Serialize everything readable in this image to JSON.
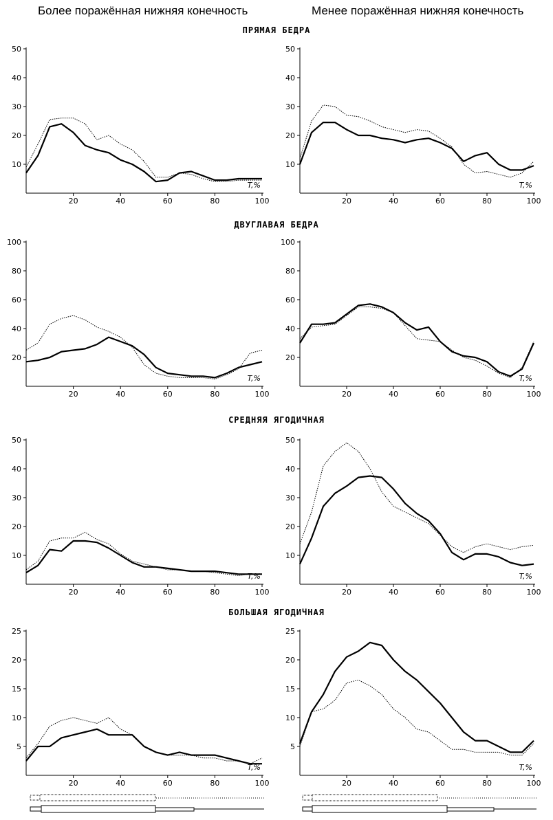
{
  "headers": {
    "left": "Более поражённая нижняя конечность",
    "right": "Менее поражённая нижняя конечность"
  },
  "sections": [
    "ПРЯМАЯ БЕДРА",
    "ДВУГЛАВАЯ БЕДРА",
    "СРЕДНЯЯ ЯГОДИЧНАЯ",
    "БОЛЬШАЯ ЯГОДИЧНАЯ"
  ],
  "xlabel": "T,%",
  "x_ticks": [
    20,
    40,
    60,
    80,
    100
  ],
  "series_styles": {
    "solid": "thick solid line",
    "dotted": "thin dotted line"
  },
  "chart_data": [
    {
      "type": "line",
      "panel": "rectus-femoris-affected",
      "title": "ПРЯМАЯ БЕДРА",
      "xlabel": "T,%",
      "xlim": [
        0,
        100
      ],
      "ylim": [
        0,
        50
      ],
      "yticks": [
        10,
        20,
        30,
        40,
        50
      ],
      "series": [
        {
          "name": "solid",
          "x": [
            0,
            5,
            10,
            15,
            20,
            25,
            30,
            35,
            40,
            45,
            50,
            55,
            60,
            65,
            70,
            75,
            80,
            85,
            90,
            95,
            100
          ],
          "values": [
            7,
            13,
            23,
            24,
            21,
            16.5,
            15,
            14,
            11.5,
            10,
            7.5,
            4,
            4.5,
            7,
            7.5,
            6,
            4.5,
            4.5,
            5,
            5,
            5
          ]
        },
        {
          "name": "dotted",
          "x": [
            0,
            5,
            10,
            15,
            20,
            25,
            30,
            35,
            40,
            45,
            50,
            55,
            60,
            65,
            70,
            75,
            80,
            85,
            90,
            95,
            100
          ],
          "values": [
            9,
            17,
            25.5,
            26,
            26,
            24,
            18.5,
            20,
            17,
            15,
            11,
            5.5,
            5.5,
            7,
            6.5,
            5,
            4,
            4,
            4.5,
            4.5,
            4.5
          ]
        }
      ]
    },
    {
      "type": "line",
      "panel": "rectus-femoris-less-affected",
      "title": "ПРЯМАЯ БЕДРА",
      "xlabel": "T,%",
      "xlim": [
        0,
        100
      ],
      "ylim": [
        0,
        50
      ],
      "yticks": [
        10,
        20,
        30,
        40,
        50
      ],
      "series": [
        {
          "name": "solid",
          "x": [
            0,
            5,
            10,
            15,
            20,
            25,
            30,
            35,
            40,
            45,
            50,
            55,
            60,
            65,
            70,
            75,
            80,
            85,
            90,
            95,
            100
          ],
          "values": [
            10,
            21,
            24.5,
            24.5,
            22,
            20,
            20,
            19,
            18.5,
            17.5,
            18.5,
            19,
            17.5,
            15.5,
            11,
            13,
            14,
            10,
            8,
            8,
            9.5
          ]
        },
        {
          "name": "dotted",
          "x": [
            0,
            5,
            10,
            15,
            20,
            25,
            30,
            35,
            40,
            45,
            50,
            55,
            60,
            65,
            70,
            75,
            80,
            85,
            90,
            95,
            100
          ],
          "values": [
            12,
            25,
            30.5,
            30,
            27,
            26.5,
            25,
            23,
            22,
            21,
            22,
            21.5,
            19,
            16,
            10,
            7,
            7.5,
            6.5,
            5.5,
            7,
            11
          ]
        }
      ]
    },
    {
      "type": "line",
      "panel": "biceps-femoris-affected",
      "title": "ДВУГЛАВАЯ БЕДРА",
      "xlabel": "T,%",
      "xlim": [
        0,
        100
      ],
      "ylim": [
        0,
        100
      ],
      "yticks": [
        20,
        40,
        60,
        80,
        100
      ],
      "series": [
        {
          "name": "solid",
          "x": [
            0,
            5,
            10,
            15,
            20,
            25,
            30,
            35,
            40,
            45,
            50,
            55,
            60,
            65,
            70,
            75,
            80,
            85,
            90,
            95,
            100
          ],
          "values": [
            17,
            18,
            20,
            24,
            25,
            26,
            29,
            34,
            31,
            28,
            22,
            13,
            9,
            8,
            7,
            7,
            6,
            9,
            13,
            15,
            17
          ]
        },
        {
          "name": "dotted",
          "x": [
            0,
            5,
            10,
            15,
            20,
            25,
            30,
            35,
            40,
            45,
            50,
            55,
            60,
            65,
            70,
            75,
            80,
            85,
            90,
            95,
            100
          ],
          "values": [
            25,
            30,
            43,
            47,
            49,
            46,
            41,
            38,
            34,
            27,
            15,
            9,
            7,
            6,
            6,
            6,
            5,
            8,
            12,
            23,
            25
          ]
        }
      ]
    },
    {
      "type": "line",
      "panel": "biceps-femoris-less-affected",
      "title": "ДВУГЛАВАЯ БЕДРА",
      "xlabel": "T,%",
      "xlim": [
        0,
        100
      ],
      "ylim": [
        0,
        100
      ],
      "yticks": [
        20,
        40,
        60,
        80,
        100
      ],
      "series": [
        {
          "name": "solid",
          "x": [
            0,
            5,
            10,
            15,
            20,
            25,
            30,
            35,
            40,
            45,
            50,
            55,
            60,
            65,
            70,
            75,
            80,
            85,
            90,
            95,
            100
          ],
          "values": [
            30,
            43,
            43,
            44,
            50,
            56,
            57,
            55,
            51,
            44,
            39,
            41,
            31,
            24,
            21,
            20,
            17,
            10,
            7,
            12,
            30
          ]
        },
        {
          "name": "dotted",
          "x": [
            0,
            5,
            10,
            15,
            20,
            25,
            30,
            35,
            40,
            45,
            50,
            55,
            60,
            65,
            70,
            75,
            80,
            85,
            90,
            95,
            100
          ],
          "values": [
            33,
            41,
            42,
            43,
            49,
            55,
            55,
            54,
            51,
            42,
            33,
            32,
            31,
            25,
            20,
            18,
            14,
            9,
            6,
            13,
            31
          ]
        }
      ]
    },
    {
      "type": "line",
      "panel": "gluteus-medius-affected",
      "title": "СРЕДНЯЯ ЯГОДИЧНАЯ",
      "xlabel": "T,%",
      "xlim": [
        0,
        100
      ],
      "ylim": [
        0,
        50
      ],
      "yticks": [
        10,
        20,
        30,
        40,
        50
      ],
      "series": [
        {
          "name": "solid",
          "x": [
            0,
            5,
            10,
            15,
            20,
            25,
            30,
            35,
            40,
            45,
            50,
            55,
            60,
            65,
            70,
            75,
            80,
            85,
            90,
            95,
            100
          ],
          "values": [
            4,
            6.5,
            12,
            11.5,
            15,
            15,
            14.5,
            12.5,
            10,
            7.5,
            6,
            6,
            5.5,
            5,
            4.5,
            4.5,
            4.5,
            4,
            3.5,
            3.5,
            3.5
          ]
        },
        {
          "name": "dotted",
          "x": [
            0,
            5,
            10,
            15,
            20,
            25,
            30,
            35,
            40,
            45,
            50,
            55,
            60,
            65,
            70,
            75,
            80,
            85,
            90,
            95,
            100
          ],
          "values": [
            5,
            8,
            15,
            16,
            16,
            18,
            15.5,
            14,
            10.5,
            8,
            7,
            6,
            5,
            5,
            4.5,
            4.5,
            4,
            3.5,
            3,
            3.5,
            3.5
          ]
        }
      ]
    },
    {
      "type": "line",
      "panel": "gluteus-medius-less-affected",
      "title": "СРЕДНЯЯ ЯГОДИЧНАЯ",
      "xlabel": "T,%",
      "xlim": [
        0,
        100
      ],
      "ylim": [
        0,
        50
      ],
      "yticks": [
        10,
        20,
        30,
        40,
        50
      ],
      "series": [
        {
          "name": "solid",
          "x": [
            0,
            5,
            10,
            15,
            20,
            25,
            30,
            35,
            40,
            45,
            50,
            55,
            60,
            65,
            70,
            75,
            80,
            85,
            90,
            95,
            100
          ],
          "values": [
            7,
            16,
            27,
            31.5,
            34,
            37,
            37.5,
            37,
            33,
            28,
            24.5,
            22,
            17.5,
            11,
            8.5,
            10.5,
            10.5,
            9.5,
            7.5,
            6.5,
            7
          ]
        },
        {
          "name": "dotted",
          "x": [
            0,
            5,
            10,
            15,
            20,
            25,
            30,
            35,
            40,
            45,
            50,
            55,
            60,
            65,
            70,
            75,
            80,
            85,
            90,
            95,
            100
          ],
          "values": [
            14,
            25,
            41,
            46,
            49,
            46,
            40,
            32,
            27,
            25,
            23,
            21,
            17,
            13,
            11,
            13,
            14,
            13,
            12,
            13,
            13.5
          ]
        }
      ]
    },
    {
      "type": "line",
      "panel": "gluteus-maximus-affected",
      "title": "БОЛЬШАЯ ЯГОДИЧНАЯ",
      "xlabel": "T,%",
      "xlim": [
        0,
        100
      ],
      "ylim": [
        0,
        25
      ],
      "yticks": [
        5,
        10,
        15,
        20,
        25
      ],
      "series": [
        {
          "name": "solid",
          "x": [
            0,
            5,
            10,
            15,
            20,
            25,
            30,
            35,
            40,
            45,
            50,
            55,
            60,
            65,
            70,
            75,
            80,
            85,
            90,
            95,
            100
          ],
          "values": [
            2.5,
            5,
            5,
            6.5,
            7,
            7.5,
            8,
            7,
            7,
            7,
            5,
            4,
            3.5,
            4,
            3.5,
            3.5,
            3.5,
            3,
            2.5,
            2,
            2
          ]
        },
        {
          "name": "dotted",
          "x": [
            0,
            5,
            10,
            15,
            20,
            25,
            30,
            35,
            40,
            45,
            50,
            55,
            60,
            65,
            70,
            75,
            80,
            85,
            90,
            95,
            100
          ],
          "values": [
            3,
            5.5,
            8.5,
            9.5,
            10,
            9.5,
            9,
            10,
            8,
            7,
            5,
            4,
            3.5,
            3.5,
            3.5,
            3,
            3,
            2.5,
            2.5,
            2,
            3
          ]
        }
      ]
    },
    {
      "type": "line",
      "panel": "gluteus-maximus-less-affected",
      "title": "БОЛЬШАЯ ЯГОДИЧНАЯ",
      "xlabel": "T,%",
      "xlim": [
        0,
        100
      ],
      "ylim": [
        0,
        25
      ],
      "yticks": [
        5,
        10,
        15,
        20,
        25
      ],
      "series": [
        {
          "name": "solid",
          "x": [
            0,
            5,
            10,
            15,
            20,
            25,
            30,
            35,
            40,
            45,
            50,
            55,
            60,
            65,
            70,
            75,
            80,
            85,
            90,
            95,
            100
          ],
          "values": [
            5.5,
            11,
            14,
            18,
            20.5,
            21.5,
            23,
            22.5,
            20,
            18,
            16.5,
            14.5,
            12.5,
            10,
            7.5,
            6,
            6,
            5,
            4,
            4,
            6
          ]
        },
        {
          "name": "dotted",
          "x": [
            0,
            5,
            10,
            15,
            20,
            25,
            30,
            35,
            40,
            45,
            50,
            55,
            60,
            65,
            70,
            75,
            80,
            85,
            90,
            95,
            100
          ],
          "values": [
            5,
            11,
            11.5,
            13,
            16,
            16.5,
            15.5,
            14,
            11.5,
            10,
            8,
            7.5,
            6,
            4.5,
            4.5,
            4,
            4,
            4,
            3.5,
            3.5,
            5.5
          ]
        }
      ]
    }
  ]
}
